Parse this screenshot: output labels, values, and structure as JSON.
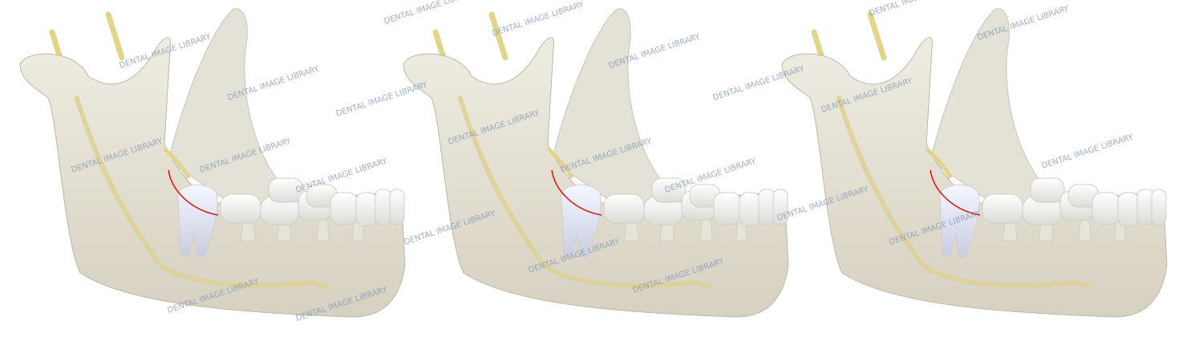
{
  "watermarks": [
    "DENTAL IMAGE LIBRARY",
    "DENTAL IMAGE LIBRARY",
    "DENTAL IMAGE LIBRARY",
    "DENTAL IMAGE LIBRARY",
    "DENTAL IMAGE LIBRARY",
    "DENTAL IMAGE LIBRARY",
    "DENTAL IMAGE LIBRARY",
    "DENTAL IMAGE LIBRARY",
    "DENTAL IMAGE LIBRARY",
    "DENTAL IMAGE LIBRARY",
    "DENTAL IMAGE LIBRARY",
    "DENTAL IMAGE LIBRARY",
    "DENTAL IMAGE LIBRARY",
    "DENTAL IMAGE LIBRARY",
    "DENTAL IMAGE LIBRARY",
    "DENTAL IMAGE LIBRARY",
    "DENTAL IMAGE LIBRARY",
    "DENTAL IMAGE LIBRARY",
    "DENTAL IMAGE LIBRARY",
    "DENTAL IMAGE LIBRARY",
    "DENTAL IMAGE LIBRARY",
    "DENTAL IMAGE LIBRARY",
    "DENTAL IMAGE LIBRARY",
    "DENTAL IMAGE LIBRARY"
  ]
}
